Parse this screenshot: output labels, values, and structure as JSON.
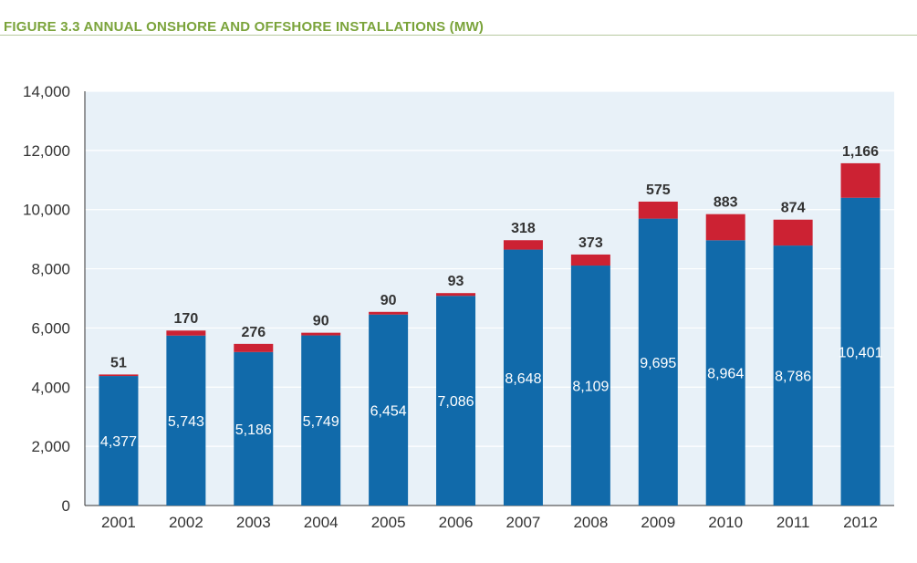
{
  "chart_data": {
    "type": "bar",
    "stacked": true,
    "title": "FIGURE 3.3 ANNUAL ONSHORE AND OFFSHORE INSTALLATIONS (MW)",
    "xlabel": "",
    "ylabel": "",
    "categories": [
      "2001",
      "2002",
      "2003",
      "2004",
      "2005",
      "2006",
      "2007",
      "2008",
      "2009",
      "2010",
      "2011",
      "2012"
    ],
    "series": [
      {
        "name": "Onshore",
        "color": "#116aaa",
        "values": [
          4377,
          5743,
          5186,
          5749,
          6454,
          7086,
          8648,
          8109,
          9695,
          8964,
          8786,
          10401
        ],
        "labels": [
          "4,377",
          "5,743",
          "5,186",
          "5,749",
          "6,454",
          "7,086",
          "8,648",
          "8,109",
          "9,695",
          "8,964",
          "8,786",
          "10,401"
        ]
      },
      {
        "name": "Offshore",
        "color": "#cc2233",
        "values": [
          51,
          170,
          276,
          90,
          90,
          93,
          318,
          373,
          575,
          883,
          874,
          1166
        ],
        "labels": [
          "51",
          "170",
          "276",
          "90",
          "90",
          "93",
          "318",
          "373",
          "575",
          "883",
          "874",
          "1,166"
        ]
      }
    ],
    "ylim": [
      0,
      14000
    ],
    "yticks": [
      0,
      2000,
      4000,
      6000,
      8000,
      10000,
      12000,
      14000
    ],
    "ytick_labels": [
      "0",
      "2,000",
      "4,000",
      "6,000",
      "8,000",
      "10,000",
      "12,000",
      "14,000"
    ],
    "grid": true,
    "background": "#e8f1f8",
    "gridColor": "#ffffff"
  }
}
